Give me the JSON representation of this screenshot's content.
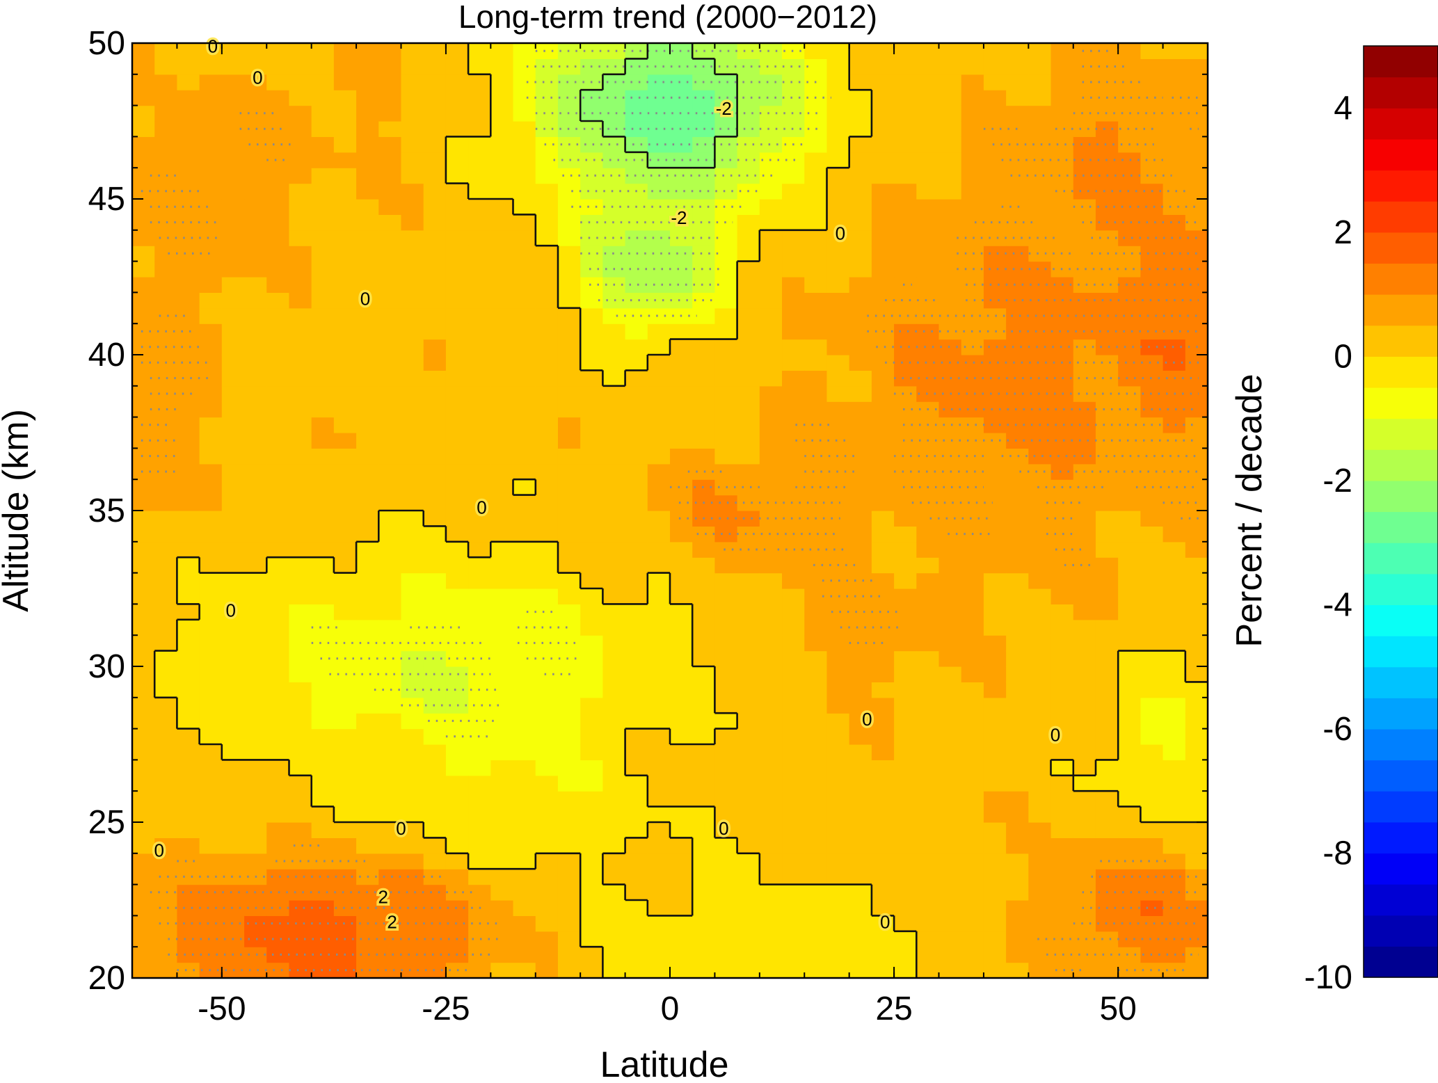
{
  "chart_data": {
    "type": "heatmap",
    "title": "Long-term trend (2000−2012)",
    "xlabel": "Latitude",
    "ylabel": "Altitude (km)",
    "colorbar_label": "Percent / decade",
    "xlim": [
      -60,
      60
    ],
    "ylim": [
      20,
      50
    ],
    "xticks": [
      -50,
      -25,
      0,
      25,
      50
    ],
    "xtick_labels": [
      "-50",
      "-25",
      "0",
      "25",
      "50"
    ],
    "yticks": [
      20,
      25,
      30,
      35,
      40,
      45,
      50
    ],
    "ytick_labels": [
      "20",
      "25",
      "30",
      "35",
      "40",
      "45",
      "50"
    ],
    "colorbar_range": [
      -10,
      5
    ],
    "colorbar_ticks": [
      -10,
      -8,
      -6,
      -4,
      -2,
      0,
      2,
      4
    ],
    "colorbar_tick_labels": [
      "-10",
      "-8",
      "-6",
      "-4",
      "-2",
      "0",
      "2",
      "4"
    ],
    "colormap": "jet",
    "grid": false,
    "stippling": "dotted rows mark statistically significant trends",
    "trend_field": [
      {
        "region": "upper equatorial stratosphere (45-50 km, -20 to 20)",
        "value": -2.8
      },
      {
        "region": "equatorial 41-44 km",
        "value": -2.4
      },
      {
        "region": "northern mid-latitudes 35-44 km (20 to 60)",
        "value": 1.2
      },
      {
        "region": "northern high latitudes 40-42 km near 60",
        "value": 1.6
      },
      {
        "region": "tropical 34-36 km (0 to 15)",
        "value": 1.0
      },
      {
        "region": "southern mid-latitudes 20-23 km (-50 to -25)",
        "value": 1.8
      },
      {
        "region": "southern tropics 27-32 km (-45 to -5)",
        "value": -1.0
      },
      {
        "region": "northern high latitudes 20-23 km (45 to 60)",
        "value": 1.4
      },
      {
        "region": "general background",
        "value": 0.3
      }
    ],
    "contour_labels": [
      {
        "text": "0",
        "x": -51,
        "y": 49.9
      },
      {
        "text": "0",
        "x": -46,
        "y": 48.9
      },
      {
        "text": "-2",
        "x": 6,
        "y": 47.9
      },
      {
        "text": "-2",
        "x": 1,
        "y": 44.4
      },
      {
        "text": "0",
        "x": 19,
        "y": 43.9
      },
      {
        "text": "0",
        "x": -34,
        "y": 41.8
      },
      {
        "text": "0",
        "x": -21,
        "y": 35.1
      },
      {
        "text": "0",
        "x": -49,
        "y": 31.8
      },
      {
        "text": "0",
        "x": 22,
        "y": 28.3
      },
      {
        "text": "0",
        "x": 43,
        "y": 27.8
      },
      {
        "text": "0",
        "x": -30,
        "y": 24.8
      },
      {
        "text": "0",
        "x": 6,
        "y": 24.8
      },
      {
        "text": "0",
        "x": -57,
        "y": 24.1
      },
      {
        "text": "2",
        "x": -32,
        "y": 22.6
      },
      {
        "text": "2",
        "x": -31,
        "y": 21.8
      },
      {
        "text": "0",
        "x": 24,
        "y": 21.8
      }
    ]
  }
}
